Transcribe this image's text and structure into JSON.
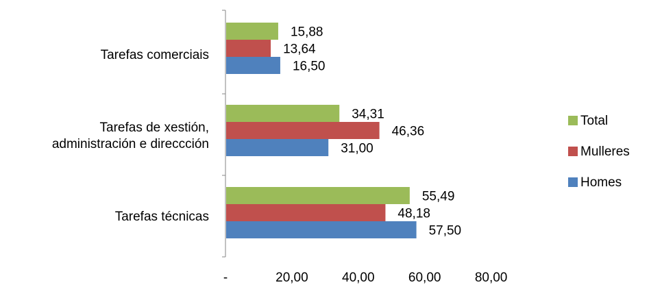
{
  "chart_data": {
    "type": "bar",
    "orientation": "horizontal",
    "categories": [
      [
        "Tarefas comerciais"
      ],
      [
        "Tarefas de xestión,",
        "administración e direccción"
      ],
      [
        "Tarefas técnicas"
      ]
    ],
    "series": [
      {
        "name": "Total",
        "color": "#9bbb59",
        "values": [
          15.88,
          34.31,
          55.49
        ],
        "labels": [
          "15,88",
          "34,31",
          "55,49"
        ]
      },
      {
        "name": "Mulleres",
        "color": "#c0504d",
        "values": [
          13.64,
          46.36,
          48.18
        ],
        "labels": [
          "13,64",
          "46,36",
          "48,18"
        ]
      },
      {
        "name": "Homes",
        "color": "#4f81bd",
        "values": [
          16.5,
          31.0,
          57.5
        ],
        "labels": [
          "16,50",
          "31,00",
          "57,50"
        ]
      }
    ],
    "xlim": [
      0,
      80
    ],
    "x_ticks": [
      0,
      20,
      40,
      60,
      80
    ],
    "x_tick_labels": [
      "-",
      "20,00",
      "40,00",
      "60,00",
      "80,00"
    ],
    "title": "",
    "xlabel": "",
    "ylabel": "",
    "grid": false,
    "legend_position": "right"
  }
}
